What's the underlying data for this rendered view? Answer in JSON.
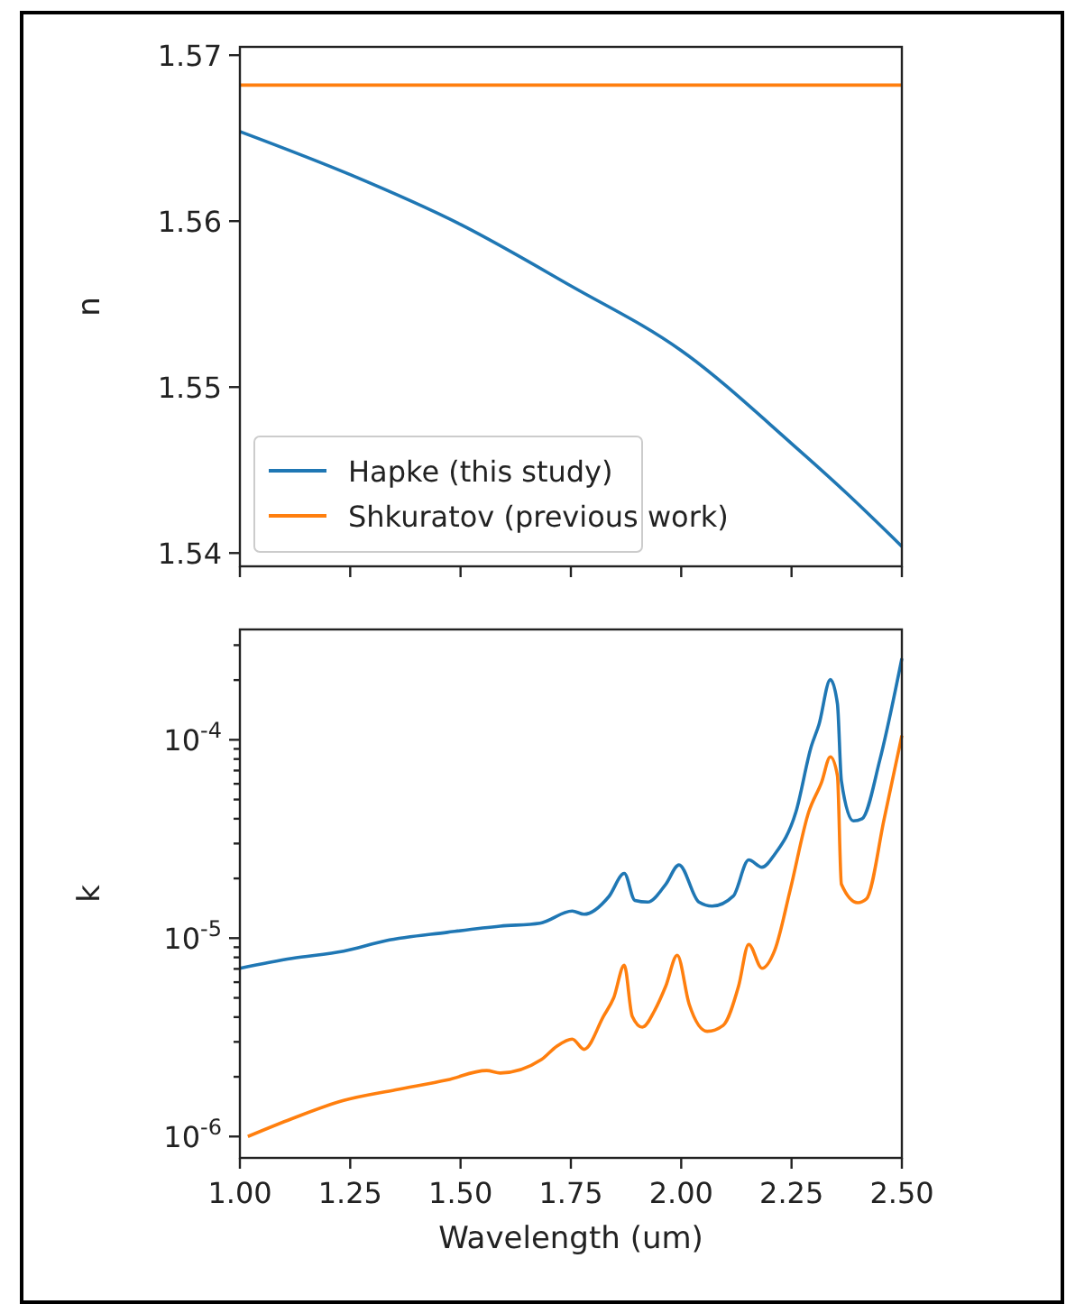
{
  "chart_data": [
    {
      "type": "line",
      "ylabel": "n",
      "xlim": [
        1.0,
        2.5
      ],
      "ylim": [
        1.5392,
        1.5705
      ],
      "xticks": [
        {
          "value": 1.0,
          "label": null
        },
        {
          "value": 1.25,
          "label": null
        },
        {
          "value": 1.5,
          "label": null
        },
        {
          "value": 1.75,
          "label": null
        },
        {
          "value": 2.0,
          "label": null
        },
        {
          "value": 2.25,
          "label": null
        },
        {
          "value": 2.5,
          "label": null
        }
      ],
      "yticks": [
        {
          "value": 1.54,
          "label": "1.54"
        },
        {
          "value": 1.55,
          "label": "1.55"
        },
        {
          "value": 1.56,
          "label": "1.56"
        },
        {
          "value": 1.57,
          "label": "1.57"
        }
      ],
      "tick_labels": "y",
      "legend": "bottom left",
      "grid": false,
      "series": [
        {
          "name": "Hapke (this study)",
          "color": "#1f77b4",
          "x": [
            1.0,
            1.25,
            1.5,
            1.75,
            2.0,
            2.25,
            2.375,
            2.5
          ],
          "values": [
            1.5654,
            1.5628,
            1.5598,
            1.5561,
            1.5522,
            1.5466,
            1.5436,
            1.5404
          ]
        },
        {
          "name": "Shkuratov (previous work)",
          "color": "#ff7f0e",
          "x": [
            1.0,
            2.5
          ],
          "values": [
            1.5682,
            1.5682
          ]
        }
      ]
    },
    {
      "type": "line",
      "ylabel": "k",
      "xlabel": "Wavelength (um)",
      "log": "y",
      "xlim": [
        1.0,
        2.5
      ],
      "ylim": [
        7.8e-07,
        0.00036
      ],
      "xticks": [
        {
          "value": 1.0,
          "label": "1.00"
        },
        {
          "value": 1.25,
          "label": "1.25"
        },
        {
          "value": 1.5,
          "label": "1.50"
        },
        {
          "value": 1.75,
          "label": "1.75"
        },
        {
          "value": 2.0,
          "label": "2.00"
        },
        {
          "value": 2.25,
          "label": "2.25"
        },
        {
          "value": 2.5,
          "label": "2.50"
        }
      ],
      "yticks": [
        {
          "value": 1e-06,
          "label": "10$^{-6}$"
        },
        {
          "value": 2e-06,
          "label": null
        },
        {
          "value": 3e-06,
          "label": null
        },
        {
          "value": 4e-06,
          "label": null
        },
        {
          "value": 5e-06,
          "label": null
        },
        {
          "value": 6e-06,
          "label": null
        },
        {
          "value": 7e-06,
          "label": null
        },
        {
          "value": 8e-06,
          "label": null
        },
        {
          "value": 9e-06,
          "label": null
        },
        {
          "value": 1e-05,
          "label": "10$^{-5}$"
        },
        {
          "value": 2e-05,
          "label": null
        },
        {
          "value": 3e-05,
          "label": null
        },
        {
          "value": 4e-05,
          "label": null
        },
        {
          "value": 5e-05,
          "label": null
        },
        {
          "value": 6e-05,
          "label": null
        },
        {
          "value": 7e-05,
          "label": null
        },
        {
          "value": 8e-05,
          "label": null
        },
        {
          "value": 9e-05,
          "label": null
        },
        {
          "value": 0.0001,
          "label": "10$^{-4}$"
        },
        {
          "value": 0.0002,
          "label": null
        },
        {
          "value": 0.0003,
          "label": null
        }
      ],
      "grid": false,
      "series": [
        {
          "color": "#1f77b4",
          "x": [
            1.0,
            1.118,
            1.235,
            1.33,
            1.47,
            1.59,
            1.68,
            1.753,
            1.78,
            1.836,
            1.871,
            1.895,
            1.924,
            1.965,
            1.995,
            2.04,
            2.07,
            2.118,
            2.153,
            2.183,
            2.212,
            2.26,
            2.295,
            2.312,
            2.338,
            2.354,
            2.363,
            2.39,
            2.41,
            2.45,
            2.5
          ],
          "values": [
            7.05e-06,
            7.9e-06,
            8.6e-06,
            9.7e-06,
            1.07e-05,
            1.15e-05,
            1.19e-05,
            1.37e-05,
            1.32e-05,
            1.62e-05,
            2.12e-05,
            1.55e-05,
            1.52e-05,
            1.87e-05,
            2.34e-05,
            1.52e-05,
            1.45e-05,
            1.63e-05,
            2.48e-05,
            2.28e-05,
            2.65e-05,
            4.33e-05,
            9.3e-05,
            0.000119,
            0.000201,
            0.000152,
            6.2e-05,
            3.9e-05,
            4e-05,
            7.9e-05,
            0.000257
          ]
        },
        {
          "color": "#ff7f0e",
          "x": [
            1.018,
            1.118,
            1.235,
            1.353,
            1.47,
            1.559,
            1.59,
            1.683,
            1.718,
            1.753,
            1.78,
            1.824,
            1.847,
            1.871,
            1.889,
            1.912,
            1.94,
            1.965,
            1.991,
            2.018,
            2.059,
            2.095,
            2.13,
            2.153,
            2.183,
            2.212,
            2.247,
            2.289,
            2.318,
            2.338,
            2.354,
            2.363,
            2.4,
            2.42,
            2.46,
            2.5
          ],
          "values": [
            1e-06,
            1.23e-06,
            1.52e-06,
            1.72e-06,
            1.93e-06,
            2.15e-06,
            2.09e-06,
            2.44e-06,
            2.85e-06,
            3.1e-06,
            2.75e-06,
            4.04e-06,
            5e-06,
            7.3e-06,
            4.04e-06,
            3.56e-06,
            4.33e-06,
            5.73e-06,
            8.2e-06,
            4.65e-06,
            3.39e-06,
            3.63e-06,
            5.73e-06,
            9.3e-06,
            7.05e-06,
            8.7e-06,
            1.75e-05,
            4.33e-05,
            6.1e-05,
            8.2e-05,
            6.6e-05,
            1.87e-05,
            1.51e-05,
            1.58e-05,
            4e-05,
            0.000105
          ]
        }
      ]
    }
  ]
}
